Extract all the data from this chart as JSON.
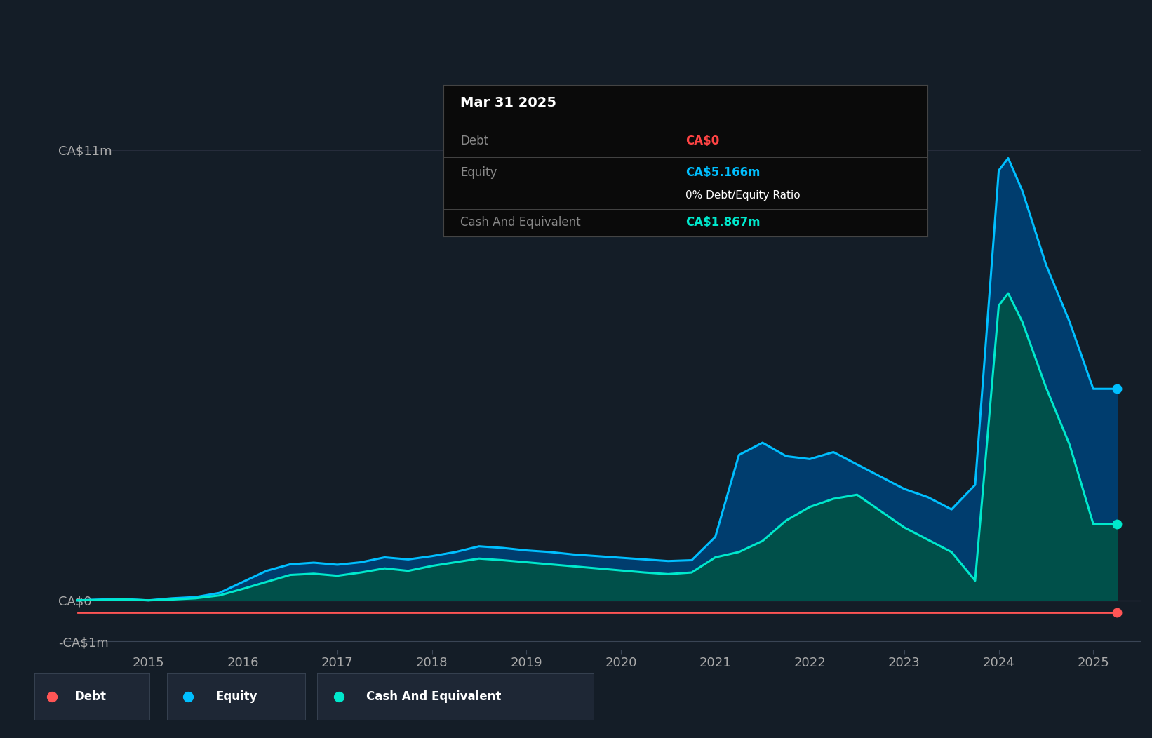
{
  "bg_color": "#141d27",
  "plot_bg_color": "#141d27",
  "grid_color": "#2a3040",
  "tooltip_date": "Mar 31 2025",
  "tooltip_debt_label": "Debt",
  "tooltip_debt_value": "CA$0",
  "tooltip_debt_color": "#ff4444",
  "tooltip_equity_label": "Equity",
  "tooltip_equity_value": "CA$5.166m",
  "tooltip_equity_color": "#00bfff",
  "tooltip_ratio_text": "0% Debt/Equity Ratio",
  "tooltip_cash_label": "Cash And Equivalent",
  "tooltip_cash_value": "CA$1.867m",
  "tooltip_cash_color": "#00e8cc",
  "ylim": [
    -1.2,
    12.5
  ],
  "ytick_positions": [
    -1.0,
    0.0,
    11.0
  ],
  "ytick_labels": [
    "-CA$1m",
    "CA$0",
    "CA$11m"
  ],
  "equity_color": "#00bfff",
  "equity_fill_color": "#003d6e",
  "cash_color": "#00e8cc",
  "cash_fill_color": "#00504a",
  "debt_color": "#ff5555",
  "legend_bg": "#1e2735",
  "years": [
    2014.25,
    2014.5,
    2014.75,
    2015.0,
    2015.25,
    2015.5,
    2015.75,
    2016.0,
    2016.25,
    2016.5,
    2016.75,
    2017.0,
    2017.25,
    2017.5,
    2017.75,
    2018.0,
    2018.25,
    2018.5,
    2018.75,
    2019.0,
    2019.25,
    2019.5,
    2019.75,
    2020.0,
    2020.25,
    2020.5,
    2020.75,
    2021.0,
    2021.25,
    2021.5,
    2021.75,
    2022.0,
    2022.25,
    2022.5,
    2022.75,
    2023.0,
    2023.25,
    2023.5,
    2023.75,
    2024.0,
    2024.1,
    2024.25,
    2024.5,
    2024.75,
    2025.0,
    2025.15,
    2025.25
  ],
  "equity": [
    0.0,
    0.02,
    0.03,
    0.0,
    0.05,
    0.08,
    0.18,
    0.45,
    0.72,
    0.88,
    0.92,
    0.87,
    0.93,
    1.05,
    1.0,
    1.08,
    1.18,
    1.32,
    1.28,
    1.22,
    1.18,
    1.12,
    1.08,
    1.04,
    1.0,
    0.96,
    0.98,
    1.55,
    3.55,
    3.85,
    3.52,
    3.45,
    3.62,
    3.32,
    3.02,
    2.72,
    2.52,
    2.22,
    2.82,
    10.5,
    10.8,
    10.0,
    8.2,
    6.8,
    5.166,
    5.166,
    5.166
  ],
  "cash": [
    0.0,
    0.01,
    0.02,
    0.0,
    0.02,
    0.05,
    0.12,
    0.28,
    0.45,
    0.62,
    0.65,
    0.6,
    0.68,
    0.78,
    0.72,
    0.84,
    0.93,
    1.02,
    0.98,
    0.93,
    0.88,
    0.83,
    0.78,
    0.73,
    0.68,
    0.64,
    0.68,
    1.05,
    1.18,
    1.45,
    1.95,
    2.28,
    2.48,
    2.58,
    2.18,
    1.78,
    1.48,
    1.18,
    0.48,
    7.2,
    7.5,
    6.8,
    5.2,
    3.8,
    1.867,
    1.867,
    1.867
  ],
  "debt": [
    -0.3,
    -0.3,
    -0.3,
    -0.3,
    -0.3,
    -0.3,
    -0.3,
    -0.3,
    -0.3,
    -0.3,
    -0.3,
    -0.3,
    -0.3,
    -0.3,
    -0.3,
    -0.3,
    -0.3,
    -0.3,
    -0.3,
    -0.3,
    -0.3,
    -0.3,
    -0.3,
    -0.3,
    -0.3,
    -0.3,
    -0.3,
    -0.3,
    -0.3,
    -0.3,
    -0.3,
    -0.3,
    -0.3,
    -0.3,
    -0.3,
    -0.3,
    -0.3,
    -0.3,
    -0.3,
    -0.3,
    -0.3,
    -0.3,
    -0.3,
    -0.3,
    -0.3,
    -0.3,
    -0.3
  ],
  "xtick_years": [
    2015,
    2016,
    2017,
    2018,
    2019,
    2020,
    2021,
    2022,
    2023,
    2024,
    2025
  ],
  "xmin": 2014.1,
  "xmax": 2025.5
}
